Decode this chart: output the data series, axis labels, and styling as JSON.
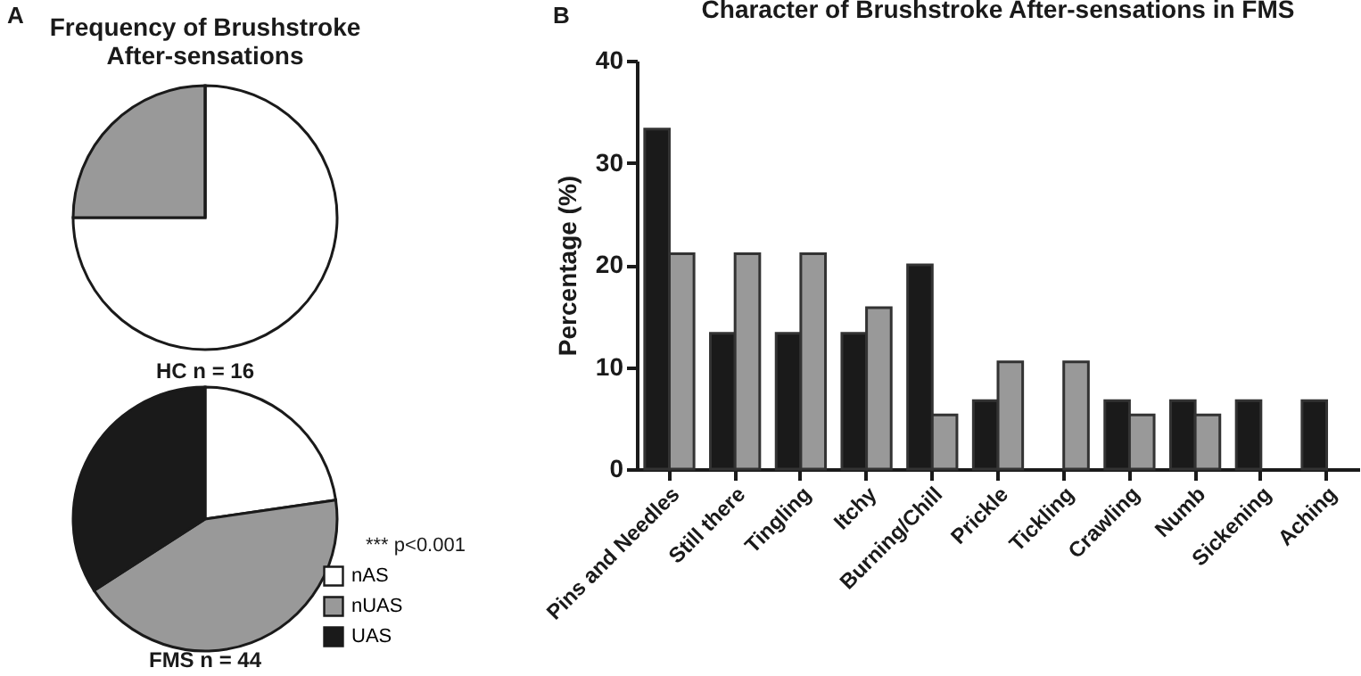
{
  "chart_data": [
    {
      "type": "pie",
      "title": "Frequency of Brushstroke After-sensations",
      "annotations": [
        "A",
        "HC n = 16"
      ],
      "categories": [
        null,
        null,
        null
      ],
      "values": [
        75,
        25,
        0
      ],
      "colors": [
        "#ffffff",
        "#999999",
        "#1a1a1a"
      ],
      "legend": false
    },
    {
      "type": "pie",
      "annotations": [
        "FMS n = 44",
        "*** p<0.001"
      ],
      "categories": [
        "nAS",
        "nUAS",
        "UAS"
      ],
      "values": [
        22.7,
        43.2,
        34.1
      ],
      "colors": [
        "#ffffff",
        "#999999",
        "#1a1a1a"
      ],
      "legend": "bottom right"
    },
    {
      "type": "bar",
      "title": "Character of Brushstroke After-sensations in FMS",
      "annotations": [
        "B"
      ],
      "ylabel": "Percentage (%)",
      "categories": [
        "Pins and Needles",
        "Still there",
        "Tingling",
        "Itchy",
        "Burning/Chill",
        "Prickle",
        "Tickling",
        "Crawling",
        "Numb",
        "Sickening",
        "Aching"
      ],
      "series": [
        {
          "color": "#1a1a1a",
          "values": [
            33.3,
            13.3,
            13.3,
            13.3,
            20,
            6.7,
            0,
            6.7,
            6.7,
            6.7,
            6.7
          ]
        },
        {
          "color": "#999999",
          "values": [
            21.1,
            21.1,
            21.1,
            15.8,
            5.3,
            10.5,
            10.5,
            5.3,
            5.3,
            0,
            0
          ]
        }
      ],
      "ylim": [
        0,
        40
      ],
      "yticks": [
        0,
        10,
        20,
        30,
        40
      ],
      "grid": false,
      "legend": false
    }
  ]
}
